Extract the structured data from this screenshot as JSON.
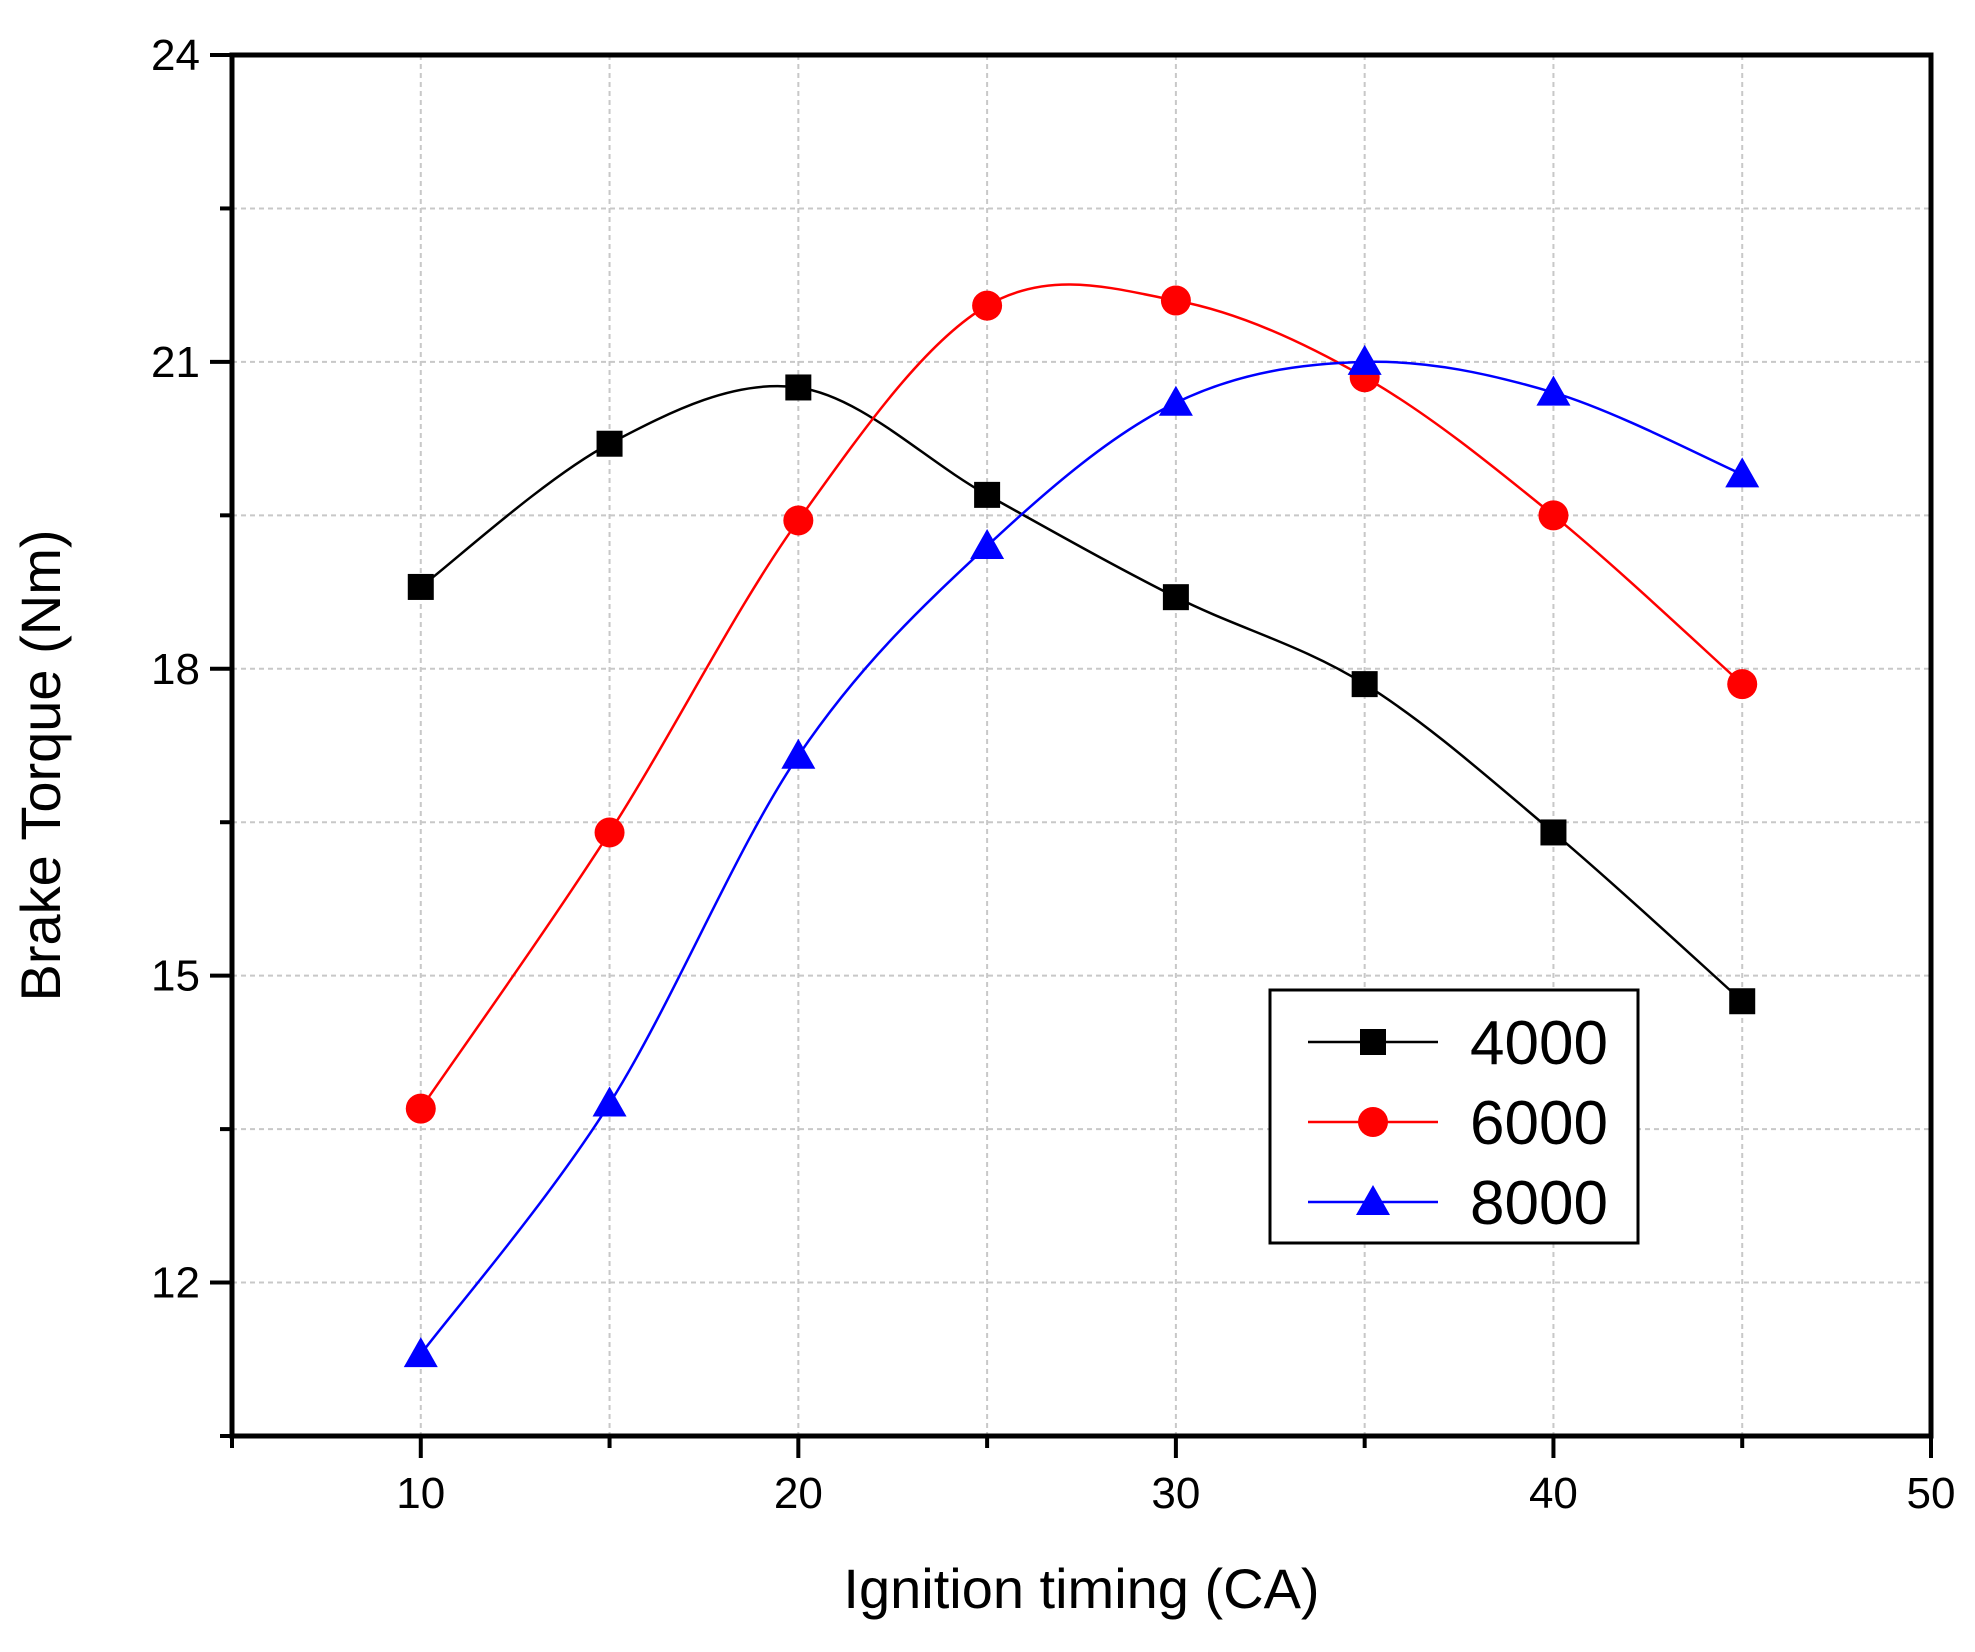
{
  "chart_data": {
    "type": "line",
    "title": "",
    "xlabel": "Ignition timing (CA)",
    "ylabel": "Brake Torque (Nm)",
    "xlim": [
      5,
      50
    ],
    "ylim": [
      10.5,
      24
    ],
    "x_ticks": [
      10,
      20,
      30,
      40,
      50
    ],
    "y_ticks": [
      12,
      15,
      18,
      21,
      24
    ],
    "x_tick_labels": [
      "10",
      "20",
      "30",
      "40",
      "50"
    ],
    "y_tick_labels": [
      "12",
      "15",
      "18",
      "21",
      "24"
    ],
    "grid": true,
    "legend_position": "lower-right",
    "x": [
      10,
      15,
      20,
      25,
      30,
      35,
      40,
      45
    ],
    "series": [
      {
        "name": "4000",
        "color": "#000000",
        "marker": "square",
        "values": [
          18.8,
          20.2,
          20.75,
          19.7,
          18.7,
          17.85,
          16.4,
          14.75
        ]
      },
      {
        "name": "6000",
        "color": "#ff0000",
        "marker": "circle",
        "values": [
          13.7,
          16.4,
          19.45,
          21.55,
          21.6,
          20.85,
          19.5,
          17.85
        ]
      },
      {
        "name": "8000",
        "color": "#0000ff",
        "marker": "triangle",
        "values": [
          11.3,
          13.75,
          17.15,
          19.2,
          20.6,
          21.0,
          20.7,
          19.9
        ]
      }
    ]
  }
}
